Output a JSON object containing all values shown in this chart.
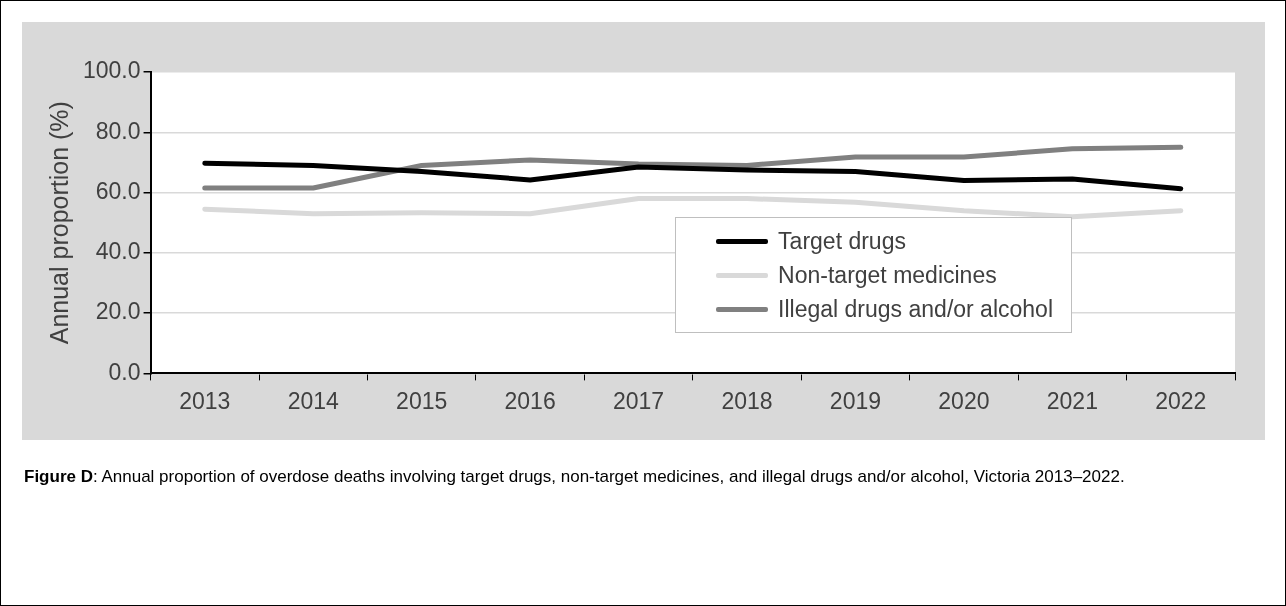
{
  "chart_data": {
    "type": "line",
    "ylabel": "Annual proportion (%)",
    "categories": [
      "2013",
      "2014",
      "2015",
      "2016",
      "2017",
      "2018",
      "2019",
      "2020",
      "2021",
      "2022"
    ],
    "series": [
      {
        "name": "Target drugs",
        "color": "#000000",
        "values": [
          69.7,
          69.0,
          67.0,
          64.2,
          68.5,
          67.5,
          67.0,
          64.0,
          64.5,
          61.3
        ]
      },
      {
        "name": "Non-target medicines",
        "color": "#d9d9d9",
        "values": [
          54.5,
          53.0,
          53.3,
          53.0,
          58.0,
          58.0,
          56.8,
          54.0,
          52.0,
          54.0
        ]
      },
      {
        "name": "Illegal drugs and/or alcohol",
        "color": "#808080",
        "values": [
          61.5,
          61.5,
          69.0,
          70.8,
          69.5,
          69.0,
          71.8,
          71.8,
          74.5,
          75.0
        ]
      }
    ],
    "ylim": [
      0,
      100
    ],
    "yticks": [
      {
        "value": 0,
        "label": "0.0"
      },
      {
        "value": 20,
        "label": "20.0"
      },
      {
        "value": 40,
        "label": "40.0"
      },
      {
        "value": 60,
        "label": "60.0"
      },
      {
        "value": 80,
        "label": "80.0"
      },
      {
        "value": 100,
        "label": "100.0"
      }
    ],
    "grid": "y",
    "legend": "bottom right",
    "marker": "none",
    "line_style": "solid",
    "annotations": [
      "Figure D: Annual proportion of overdose deaths involving target drugs, non-target medicines, and illegal drugs and/or alcohol, Victoria 2013–2022."
    ]
  }
}
